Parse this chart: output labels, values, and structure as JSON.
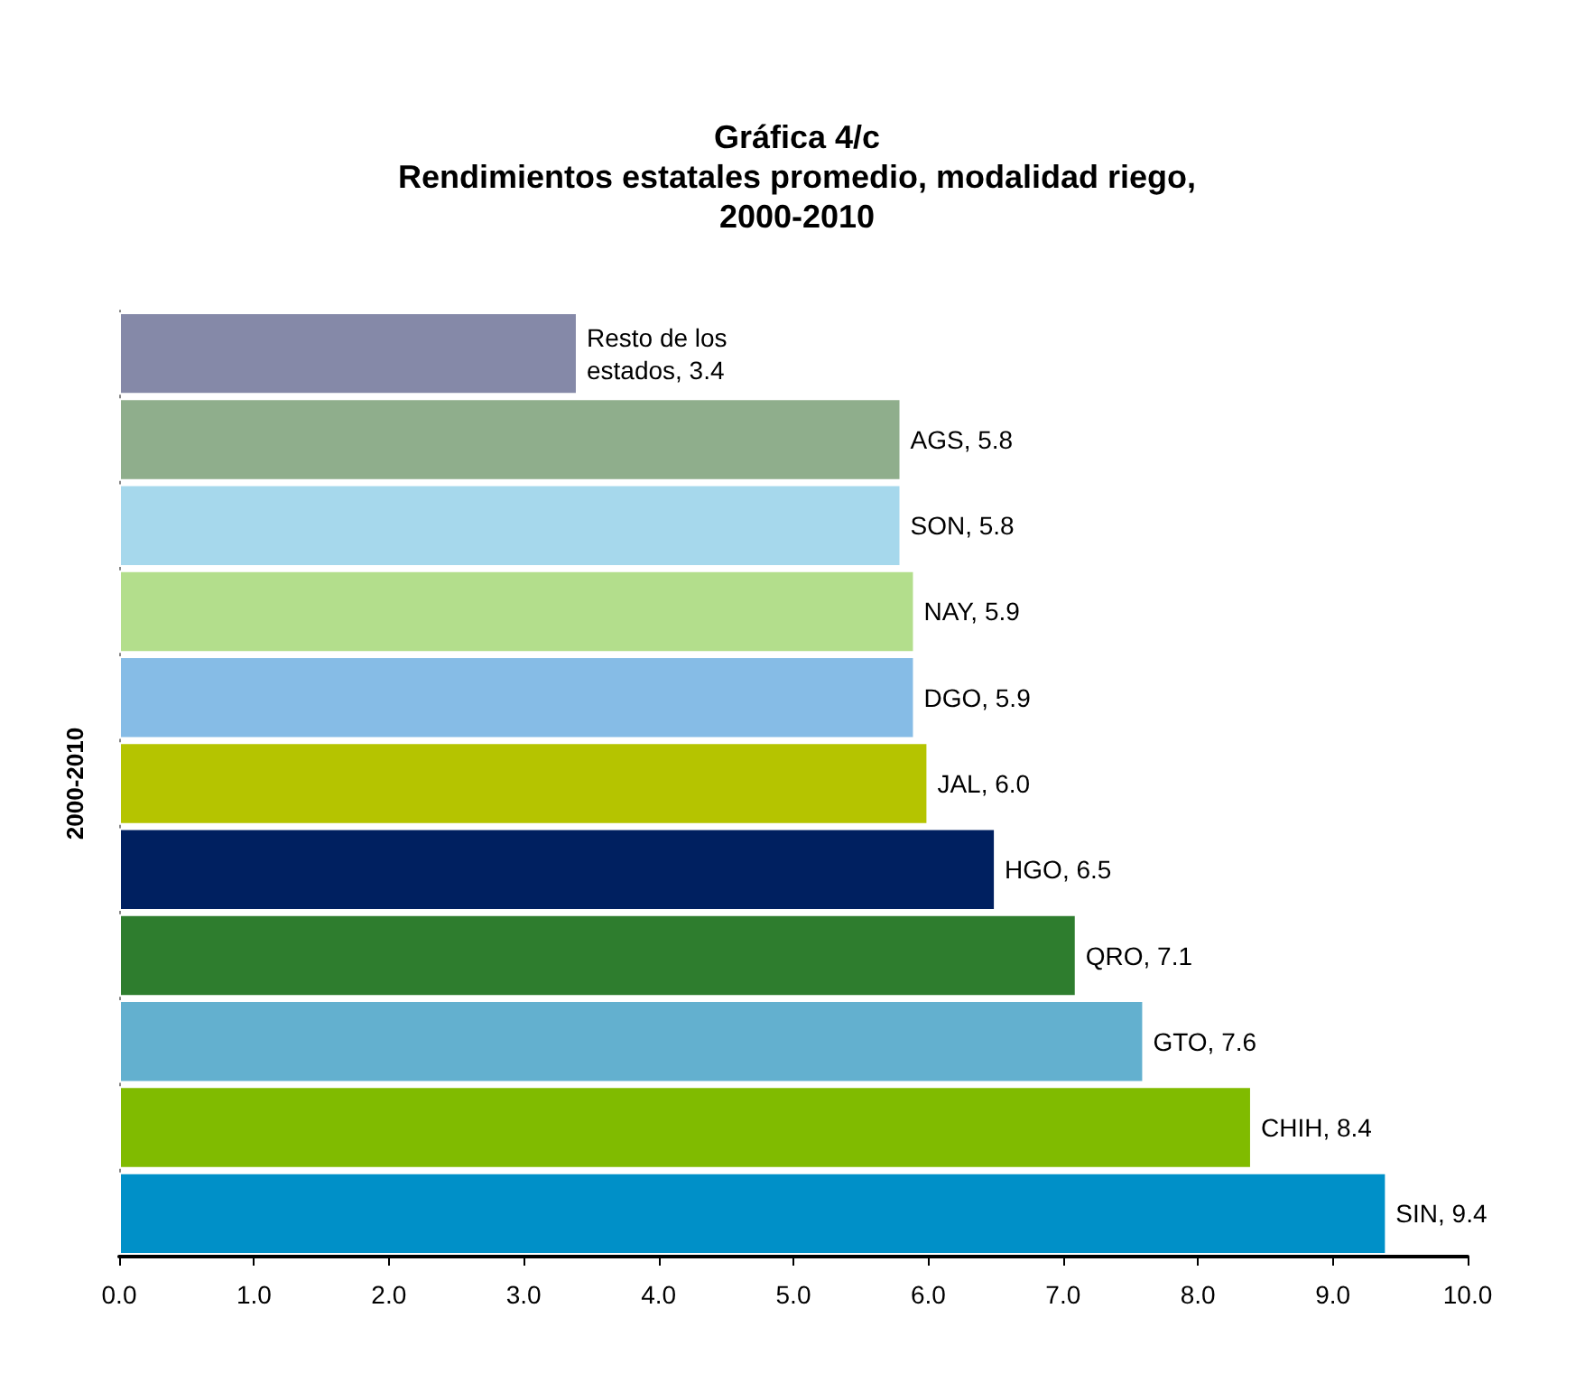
{
  "chart_data": {
    "type": "bar",
    "orientation": "horizontal",
    "title": "Gráfica 4/c\nRendimientos estatales promedio, modalidad riego,\n2000-2010",
    "ylabel": "2000-2010",
    "categories": [
      null,
      null,
      null,
      null,
      null,
      null,
      null,
      null,
      null,
      null,
      null
    ],
    "values": [
      3.4,
      5.8,
      5.8,
      5.9,
      5.9,
      6.0,
      6.5,
      7.1,
      7.6,
      8.4,
      9.4
    ],
    "colors": [
      "#8589a8",
      "#8fae8c",
      "#a6d8ec",
      "#b3de8c",
      "#86bce6",
      "#b5c400",
      "#002060",
      "#2e7d2e",
      "#63b0cf",
      "#80bb00",
      "#0090c8"
    ],
    "xlim": [
      0,
      10
    ],
    "xticks": [
      {
        "value": 0,
        "label": "0.0"
      },
      {
        "value": 1,
        "label": "1.0"
      },
      {
        "value": 2,
        "label": "2.0"
      },
      {
        "value": 3,
        "label": "3.0"
      },
      {
        "value": 4,
        "label": "4.0"
      },
      {
        "value": 5,
        "label": "5.0"
      },
      {
        "value": 6,
        "label": "6.0"
      },
      {
        "value": 7,
        "label": "7.0"
      },
      {
        "value": 8,
        "label": "8.0"
      },
      {
        "value": 9,
        "label": "9.0"
      },
      {
        "value": 10,
        "label": "10.0"
      }
    ],
    "value_labels": [
      "Resto de los estados, 3.4",
      "AGS, 5.8",
      "SON, 5.8",
      "NAY, 5.9",
      "DGO, 5.9",
      "JAL, 6.0",
      "HGO, 6.5",
      "QRO, 7.1",
      "GTO, 7.6",
      "CHIH, 8.4",
      "SIN, 9.4"
    ],
    "grid": false
  }
}
